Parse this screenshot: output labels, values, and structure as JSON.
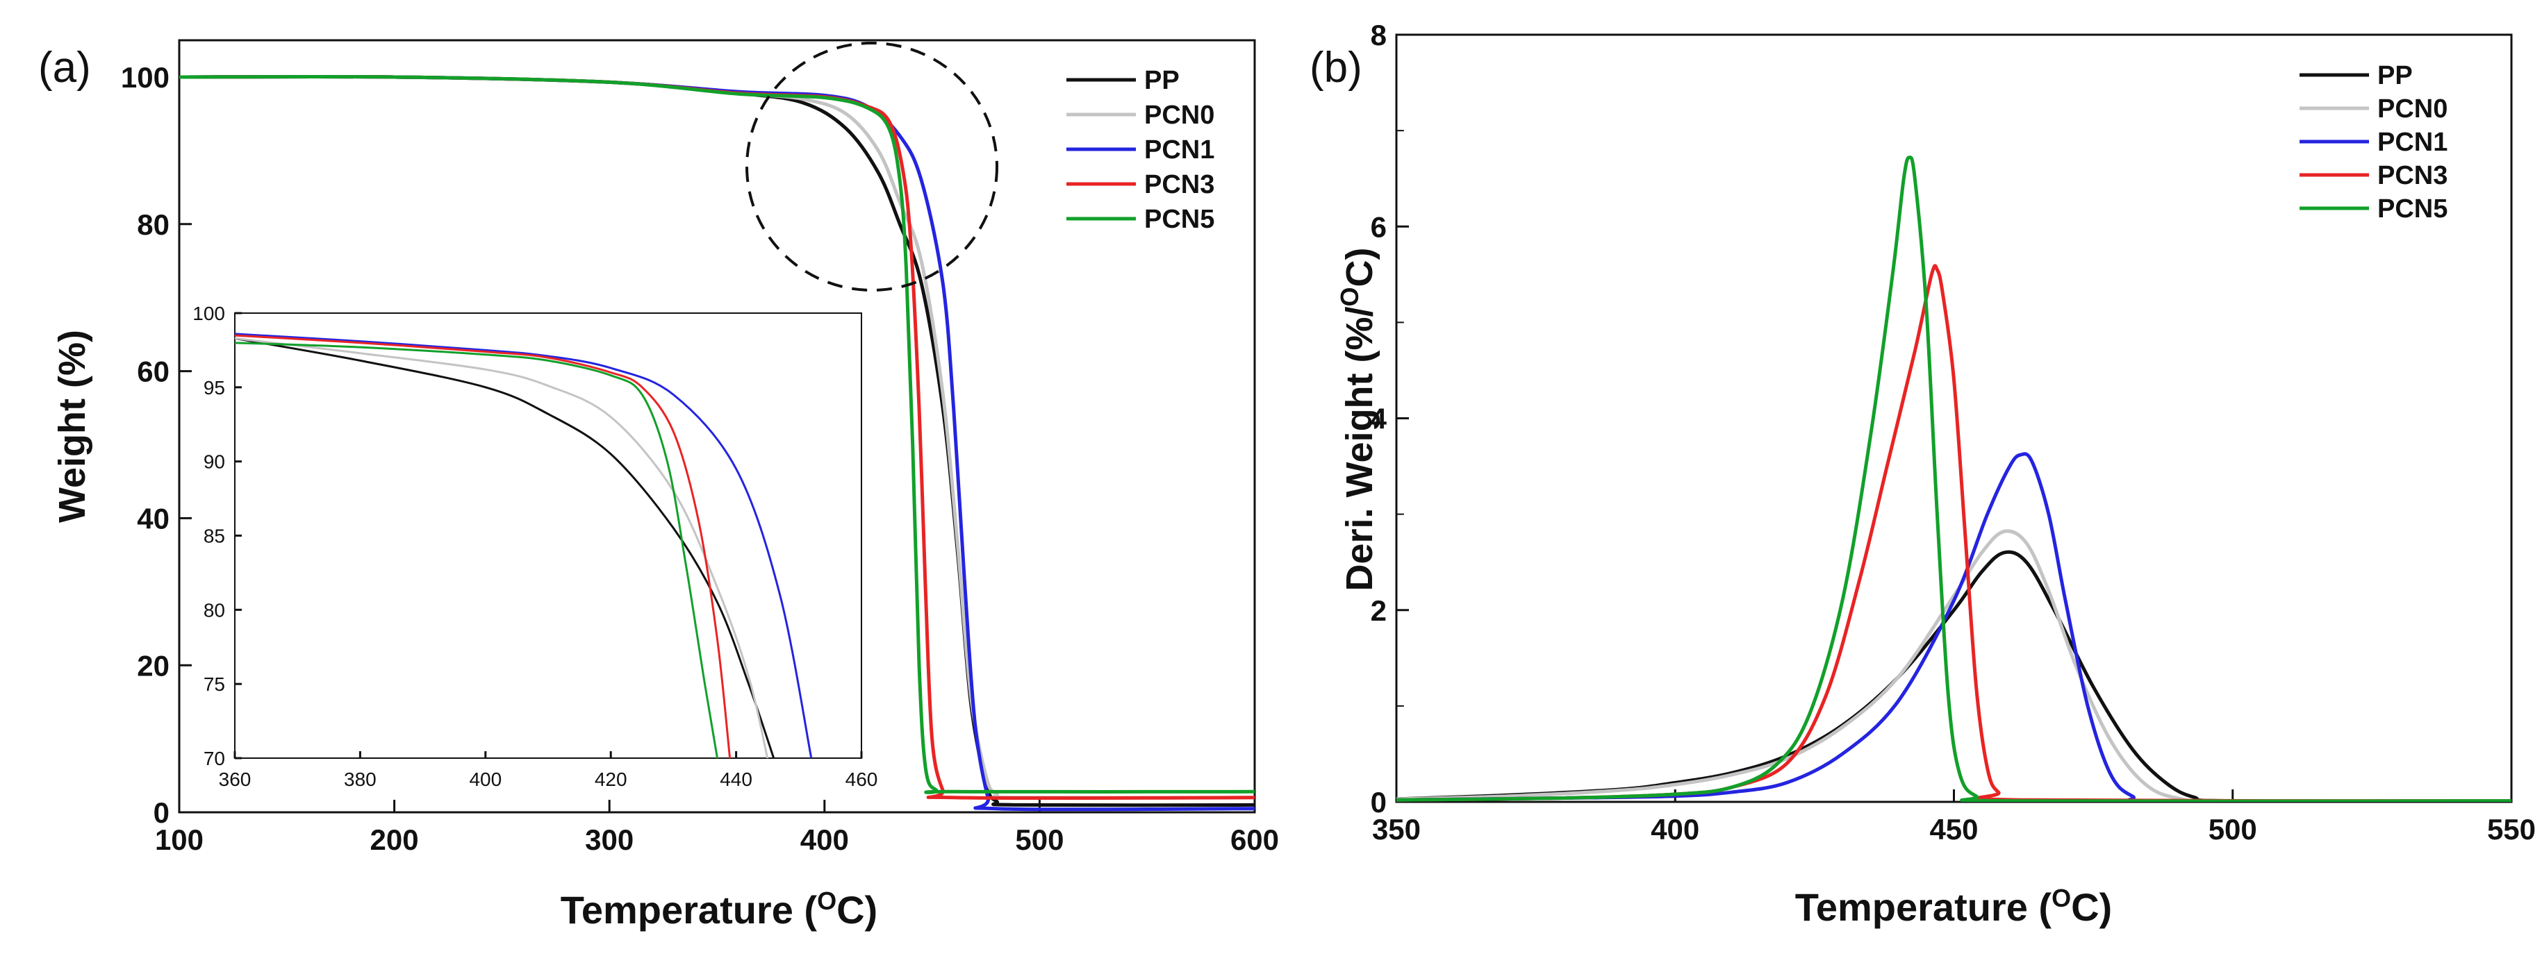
{
  "colors": {
    "PP": "#111111",
    "PCN0": "#c4c4c4",
    "PCN1": "#2424e0",
    "PCN3": "#e82424",
    "PCN5": "#12a02a"
  },
  "chart_data": [
    {
      "panel": "(a)",
      "type": "line",
      "xlabel_main": "Temperature (",
      "xlabel_sup": "O",
      "xlabel_end": "C)",
      "ylabel": "Weight (%)",
      "xlim": [
        100,
        600
      ],
      "ylim": [
        0,
        105
      ],
      "xticks": [
        "100",
        "200",
        "300",
        "400",
        "500",
        "600"
      ],
      "yticks": [
        "0",
        "20",
        "40",
        "60",
        "80",
        "100"
      ],
      "legend": [
        "PP",
        "PCN0",
        "PCN1",
        "PCN3",
        "PCN5"
      ],
      "legend_position": "top-right",
      "annotation": "dashed circle highlighting region near 420 C, 90%",
      "series": [
        {
          "name": "PP",
          "points": [
            [
              100,
              100
            ],
            [
              200,
              100
            ],
            [
              300,
              99.3
            ],
            [
              360,
              97.8
            ],
            [
              390,
              96.5
            ],
            [
              410,
              93
            ],
            [
              425,
              87
            ],
            [
              435,
              80
            ],
            [
              445,
              72
            ],
            [
              455,
              55
            ],
            [
              462,
              35
            ],
            [
              468,
              15
            ],
            [
              475,
              4
            ],
            [
              480,
              1.5
            ],
            [
              490,
              1
            ],
            [
              600,
              1
            ]
          ]
        },
        {
          "name": "PCN0",
          "points": [
            [
              100,
              100
            ],
            [
              200,
              100
            ],
            [
              300,
              99.3
            ],
            [
              360,
              97.8
            ],
            [
              390,
              97
            ],
            [
              410,
              95
            ],
            [
              425,
              90
            ],
            [
              435,
              83
            ],
            [
              445,
              75
            ],
            [
              455,
              57
            ],
            [
              462,
              36
            ],
            [
              468,
              16
            ],
            [
              475,
              5
            ],
            [
              480,
              2.5
            ],
            [
              490,
              2
            ],
            [
              600,
              2
            ]
          ]
        },
        {
          "name": "PCN1",
          "points": [
            [
              100,
              100
            ],
            [
              200,
              100
            ],
            [
              300,
              99.3
            ],
            [
              360,
              98
            ],
            [
              400,
              97.5
            ],
            [
              420,
              96
            ],
            [
              435,
              92
            ],
            [
              445,
              86
            ],
            [
              455,
              72
            ],
            [
              460,
              55
            ],
            [
              465,
              32
            ],
            [
              470,
              12
            ],
            [
              476,
              2
            ],
            [
              480,
              0.5
            ],
            [
              600,
              0.5
            ]
          ]
        },
        {
          "name": "PCN3",
          "points": [
            [
              100,
              100
            ],
            [
              200,
              100
            ],
            [
              300,
              99.3
            ],
            [
              360,
              97.8
            ],
            [
              400,
              97.3
            ],
            [
              420,
              96
            ],
            [
              430,
              94
            ],
            [
              436,
              88
            ],
            [
              440,
              78
            ],
            [
              444,
              55
            ],
            [
              447,
              30
            ],
            [
              450,
              10
            ],
            [
              455,
              3
            ],
            [
              460,
              2
            ],
            [
              600,
              2
            ]
          ]
        },
        {
          "name": "PCN5",
          "points": [
            [
              100,
              100
            ],
            [
              200,
              100
            ],
            [
              300,
              99.3
            ],
            [
              360,
              97.7
            ],
            [
              400,
              97.2
            ],
            [
              420,
              95.8
            ],
            [
              430,
              93
            ],
            [
              435,
              86
            ],
            [
              438,
              74
            ],
            [
              441,
              50
            ],
            [
              444,
              20
            ],
            [
              447,
              6
            ],
            [
              452,
              3
            ],
            [
              460,
              2.8
            ],
            [
              600,
              2.8
            ]
          ]
        }
      ],
      "inset": {
        "xlim": [
          360,
          460
        ],
        "ylim": [
          70,
          100
        ],
        "xticks": [
          "360",
          "380",
          "400",
          "420",
          "440",
          "460"
        ],
        "yticks": [
          "70",
          "75",
          "80",
          "85",
          "90",
          "95",
          "100"
        ],
        "series": [
          {
            "name": "PP",
            "points": [
              [
                360,
                98.3
              ],
              [
                380,
                96.8
              ],
              [
                400,
                95
              ],
              [
                410,
                93.2
              ],
              [
                420,
                90.5
              ],
              [
                430,
                85.5
              ],
              [
                437,
                80.5
              ],
              [
                442,
                75
              ],
              [
                446,
                70
              ]
            ]
          },
          {
            "name": "PCN0",
            "points": [
              [
                360,
                98.3
              ],
              [
                380,
                97.3
              ],
              [
                400,
                96.2
              ],
              [
                410,
                95.1
              ],
              [
                420,
                93
              ],
              [
                430,
                88
              ],
              [
                437,
                81.5
              ],
              [
                442,
                75.5
              ],
              [
                445,
                70
              ]
            ]
          },
          {
            "name": "PCN1",
            "points": [
              [
                360,
                98.6
              ],
              [
                380,
                98.1
              ],
              [
                400,
                97.5
              ],
              [
                410,
                97.1
              ],
              [
                420,
                96.3
              ],
              [
                430,
                94.5
              ],
              [
                440,
                89.5
              ],
              [
                447,
                81
              ],
              [
                452,
                70
              ]
            ]
          },
          {
            "name": "PCN3",
            "points": [
              [
                360,
                98.5
              ],
              [
                380,
                98
              ],
              [
                400,
                97.4
              ],
              [
                410,
                97
              ],
              [
                420,
                96
              ],
              [
                425,
                95
              ],
              [
                430,
                92
              ],
              [
                434,
                86
              ],
              [
                437,
                78
              ],
              [
                439,
                70
              ]
            ]
          },
          {
            "name": "PCN5",
            "points": [
              [
                360,
                98
              ],
              [
                380,
                97.7
              ],
              [
                400,
                97.2
              ],
              [
                410,
                96.8
              ],
              [
                420,
                95.8
              ],
              [
                425,
                94.5
              ],
              [
                429,
                90
              ],
              [
                432,
                83
              ],
              [
                435,
                75
              ],
              [
                437,
                70
              ]
            ]
          }
        ]
      }
    },
    {
      "panel": "(b)",
      "type": "line",
      "xlabel_main": "Temperature (",
      "xlabel_sup": "O",
      "xlabel_end": "C)",
      "ylabel_main": "Deri. Weight (%/",
      "ylabel_sup": "O",
      "ylabel_end": "C)",
      "xlim": [
        350,
        550
      ],
      "ylim": [
        0,
        8
      ],
      "xticks": [
        "350",
        "400",
        "450",
        "500",
        "550"
      ],
      "yticks": [
        "0",
        "2",
        "4",
        "6",
        "8"
      ],
      "legend": [
        "PP",
        "PCN0",
        "PCN1",
        "PCN3",
        "PCN5"
      ],
      "legend_position": "top-right",
      "series": [
        {
          "name": "PP",
          "points": [
            [
              350,
              0.03
            ],
            [
              370,
              0.07
            ],
            [
              390,
              0.13
            ],
            [
              400,
              0.2
            ],
            [
              410,
              0.3
            ],
            [
              420,
              0.48
            ],
            [
              430,
              0.8
            ],
            [
              440,
              1.3
            ],
            [
              450,
              2.0
            ],
            [
              455,
              2.4
            ],
            [
              459,
              2.6
            ],
            [
              463,
              2.5
            ],
            [
              468,
              2.0
            ],
            [
              475,
              1.2
            ],
            [
              482,
              0.55
            ],
            [
              488,
              0.2
            ],
            [
              493,
              0.05
            ],
            [
              500,
              0.01
            ],
            [
              550,
              0.01
            ]
          ]
        },
        {
          "name": "PCN0",
          "points": [
            [
              350,
              0.03
            ],
            [
              370,
              0.06
            ],
            [
              390,
              0.12
            ],
            [
              400,
              0.18
            ],
            [
              410,
              0.28
            ],
            [
              420,
              0.45
            ],
            [
              430,
              0.78
            ],
            [
              440,
              1.3
            ],
            [
              450,
              2.15
            ],
            [
              455,
              2.6
            ],
            [
              459,
              2.82
            ],
            [
              463,
              2.7
            ],
            [
              467,
              2.2
            ],
            [
              472,
              1.4
            ],
            [
              478,
              0.65
            ],
            [
              484,
              0.2
            ],
            [
              490,
              0.04
            ],
            [
              500,
              0.01
            ],
            [
              550,
              0.01
            ]
          ]
        },
        {
          "name": "PCN1",
          "points": [
            [
              350,
              0.02
            ],
            [
              380,
              0.04
            ],
            [
              400,
              0.06
            ],
            [
              410,
              0.1
            ],
            [
              420,
              0.2
            ],
            [
              430,
              0.5
            ],
            [
              440,
              1.05
            ],
            [
              450,
              2.1
            ],
            [
              456,
              3.0
            ],
            [
              460,
              3.5
            ],
            [
              462,
              3.62
            ],
            [
              464,
              3.55
            ],
            [
              467,
              3.0
            ],
            [
              470,
              2.1
            ],
            [
              474,
              1.0
            ],
            [
              478,
              0.3
            ],
            [
              482,
              0.06
            ],
            [
              488,
              0.01
            ],
            [
              550,
              0.01
            ]
          ]
        },
        {
          "name": "PCN3",
          "points": [
            [
              350,
              0.02
            ],
            [
              380,
              0.04
            ],
            [
              400,
              0.08
            ],
            [
              410,
              0.15
            ],
            [
              420,
              0.4
            ],
            [
              427,
              1.1
            ],
            [
              433,
              2.3
            ],
            [
              438,
              3.5
            ],
            [
              443,
              4.7
            ],
            [
              446,
              5.5
            ],
            [
              447,
              5.55
            ],
            [
              448,
              5.3
            ],
            [
              450,
              4.4
            ],
            [
              452,
              2.8
            ],
            [
              454,
              1.2
            ],
            [
              456,
              0.35
            ],
            [
              458,
              0.1
            ],
            [
              462,
              0.02
            ],
            [
              550,
              0.01
            ]
          ]
        },
        {
          "name": "PCN5",
          "points": [
            [
              350,
              0.02
            ],
            [
              380,
              0.04
            ],
            [
              400,
              0.08
            ],
            [
              410,
              0.15
            ],
            [
              418,
              0.38
            ],
            [
              424,
              0.9
            ],
            [
              430,
              2.1
            ],
            [
              435,
              3.8
            ],
            [
              439,
              5.5
            ],
            [
              441,
              6.5
            ],
            [
              442,
              6.72
            ],
            [
              443,
              6.5
            ],
            [
              445,
              5.2
            ],
            [
              447,
              3.0
            ],
            [
              449,
              1.1
            ],
            [
              451,
              0.3
            ],
            [
              454,
              0.06
            ],
            [
              460,
              0.01
            ],
            [
              550,
              0.01
            ]
          ]
        }
      ]
    }
  ]
}
